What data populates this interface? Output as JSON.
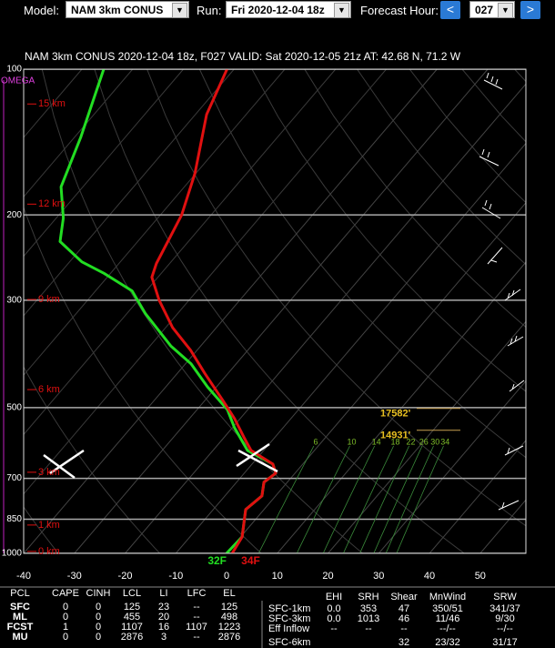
{
  "toolbar": {
    "model_label": "Model:",
    "model": "NAM 3km CONUS",
    "run_label": "Run:",
    "run": "Fri 2020-12-04 18z",
    "hour_label": "Forecast Hour:",
    "prev": "<",
    "hour": "027",
    "next": ">"
  },
  "chart_data": {
    "type": "skew-t",
    "title": "NAM 3km CONUS 2020-12-04 18z, F027  VALID: Sat 2020-12-05 21z  AT: 42.68 N, 71.2 W",
    "omega_label": "OMEGA",
    "ylim": [
      1000,
      100
    ],
    "yscale": "log",
    "yticks": [
      100,
      200,
      300,
      500,
      700,
      850,
      1000
    ],
    "grid": true,
    "xlim": [
      -40,
      59
    ],
    "xticks": [
      -40,
      -30,
      -20,
      -10,
      0,
      10,
      20,
      30,
      40,
      50
    ],
    "heights": [
      {
        "pressure": 118,
        "label": "15 km"
      },
      {
        "pressure": 190,
        "label": "12 km"
      },
      {
        "pressure": 299,
        "label": "9 km"
      },
      {
        "pressure": 459,
        "label": "6 km"
      },
      {
        "pressure": 680,
        "label": "3 km"
      },
      {
        "pressure": 874,
        "label": "1 km"
      },
      {
        "pressure": 991,
        "label": "0 km"
      }
    ],
    "temperature": {
      "color": "#e01010",
      "pressure": [
        100,
        124,
        164,
        200,
        252,
        269,
        300,
        342,
        381,
        424,
        483,
        527,
        575,
        613,
        654,
        683,
        713,
        761,
        812,
        925,
        1000
      ],
      "values": [
        -81.4,
        -77.8,
        -70.2,
        -65.8,
        -62.6,
        -61.2,
        -55.9,
        -48.6,
        -41.2,
        -34.7,
        -26.5,
        -21.1,
        -16.2,
        -12.5,
        -5.9,
        -3.8,
        -4.6,
        -2.7,
        -3.6,
        0.3,
        1.1
      ],
      "surface_label": "34F"
    },
    "dewpoint": {
      "color": "#22dd22",
      "pressure": [
        100,
        138,
        175,
        203,
        227,
        250,
        264,
        287,
        320,
        373,
        406,
        453,
        505,
        550,
        613,
        654,
        683,
        713,
        761,
        812,
        925,
        1000
      ],
      "values": [
        -105.7,
        -98.8,
        -94.3,
        -88.6,
        -85.3,
        -77.6,
        -71.3,
        -62.8,
        -56.3,
        -45.9,
        -38.9,
        -31.8,
        -24.0,
        -19.6,
        -13.2,
        -5.9,
        -3.8,
        -4.6,
        -2.7,
        -3.6,
        0.3,
        0
      ],
      "surface_label": "32F"
    },
    "mixing_ratio": {
      "color": "#3a8a3a",
      "label_color": "#7fbf2a",
      "values": [
        6,
        10,
        14,
        18,
        22,
        26,
        30,
        34
      ]
    },
    "levels": [
      {
        "pressure": 502,
        "label": "17582'"
      },
      {
        "pressure": 557,
        "label": "14931'"
      }
    ]
  },
  "tables": {
    "parcels": {
      "header": [
        "PCL",
        "CAPE",
        "CINH",
        "LCL",
        "LI",
        "LFC",
        "EL"
      ],
      "rows": [
        [
          "SFC",
          "0",
          "0",
          "125",
          "23",
          "--",
          "125"
        ],
        [
          "ML",
          "0",
          "0",
          "455",
          "20",
          "--",
          "498"
        ],
        [
          "FCST",
          "1",
          "0",
          "1107",
          "16",
          "1107",
          "1223"
        ],
        [
          "MU",
          "0",
          "0",
          "2876",
          "3",
          "--",
          "2876"
        ]
      ]
    },
    "shear": {
      "header": [
        "EHI",
        "SRH",
        "Shear",
        "MnWind",
        "SRW"
      ],
      "rows": [
        [
          "SFC-1km",
          "0.0",
          "353",
          "47",
          "350/51",
          "341/37"
        ],
        [
          "SFC-3km",
          "0.0",
          "1013",
          "46",
          "11/46",
          "9/30"
        ],
        [
          "Eff Inflow",
          "--",
          "--",
          "--",
          "--/--",
          "--/--"
        ],
        [
          "SFC-6km",
          null,
          null,
          "32",
          "23/32",
          "31/17"
        ]
      ]
    }
  }
}
